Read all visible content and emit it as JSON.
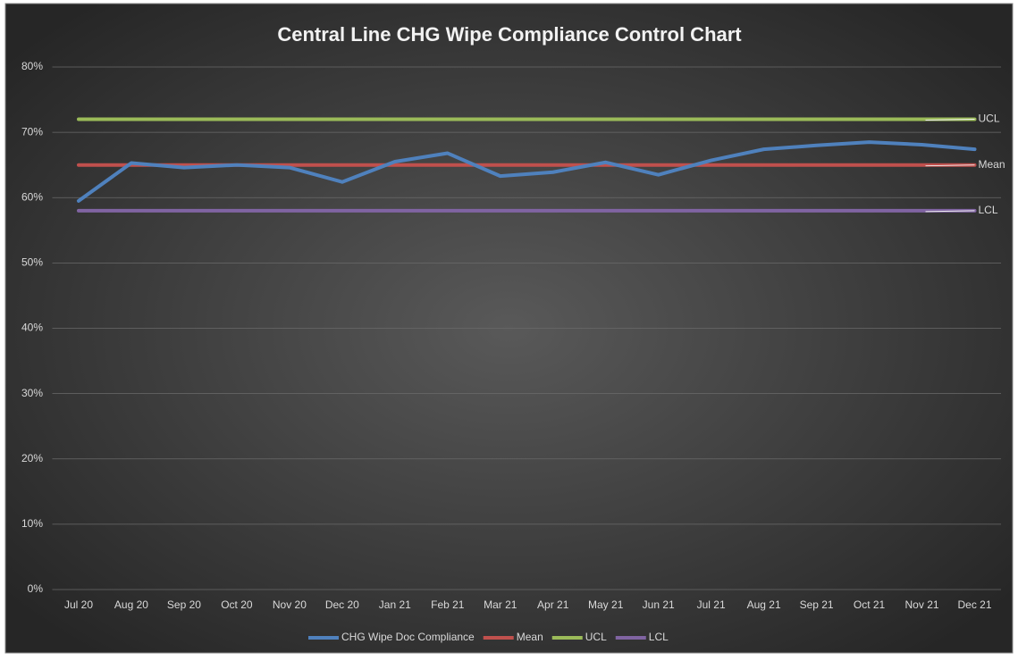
{
  "chart_data": {
    "type": "line",
    "title": "Central Line CHG Wipe Compliance Control Chart",
    "categories": [
      "Jul 20",
      "Aug 20",
      "Sep 20",
      "Oct 20",
      "Nov 20",
      "Dec 20",
      "Jan 21",
      "Feb 21",
      "Mar 21",
      "Apr 21",
      "May 21",
      "Jun 21",
      "Jul 21",
      "Aug 21",
      "Sep 21",
      "Oct 21",
      "Nov 21",
      "Dec 21"
    ],
    "series": [
      {
        "name": "CHG Wipe Doc Compliance",
        "color": "#4f81bd",
        "values": [
          59.5,
          65.3,
          64.6,
          65.0,
          64.6,
          62.4,
          65.5,
          66.8,
          63.3,
          63.9,
          65.4,
          63.5,
          65.7,
          67.4,
          68.0,
          68.5,
          68.1,
          67.4
        ]
      },
      {
        "name": "Mean",
        "color": "#c0504d",
        "values": [
          65,
          65,
          65,
          65,
          65,
          65,
          65,
          65,
          65,
          65,
          65,
          65,
          65,
          65,
          65,
          65,
          65,
          65
        ],
        "end_label": true
      },
      {
        "name": "UCL",
        "color": "#9bbb59",
        "values": [
          72,
          72,
          72,
          72,
          72,
          72,
          72,
          72,
          72,
          72,
          72,
          72,
          72,
          72,
          72,
          72,
          72,
          72
        ],
        "end_label": true
      },
      {
        "name": "LCL",
        "color": "#8064a2",
        "values": [
          58,
          58,
          58,
          58,
          58,
          58,
          58,
          58,
          58,
          58,
          58,
          58,
          58,
          58,
          58,
          58,
          58,
          58
        ],
        "end_label": true
      }
    ],
    "ylim": [
      0,
      80
    ],
    "yticks": [
      {
        "value": 0,
        "label": "0%"
      },
      {
        "value": 10,
        "label": "10%"
      },
      {
        "value": 20,
        "label": "20%"
      },
      {
        "value": 30,
        "label": "30%"
      },
      {
        "value": 40,
        "label": "40%"
      },
      {
        "value": 50,
        "label": "50%"
      },
      {
        "value": 60,
        "label": "60%"
      },
      {
        "value": 70,
        "label": "70%"
      },
      {
        "value": 80,
        "label": "80%"
      }
    ],
    "grid": true,
    "legend": "bottom"
  }
}
